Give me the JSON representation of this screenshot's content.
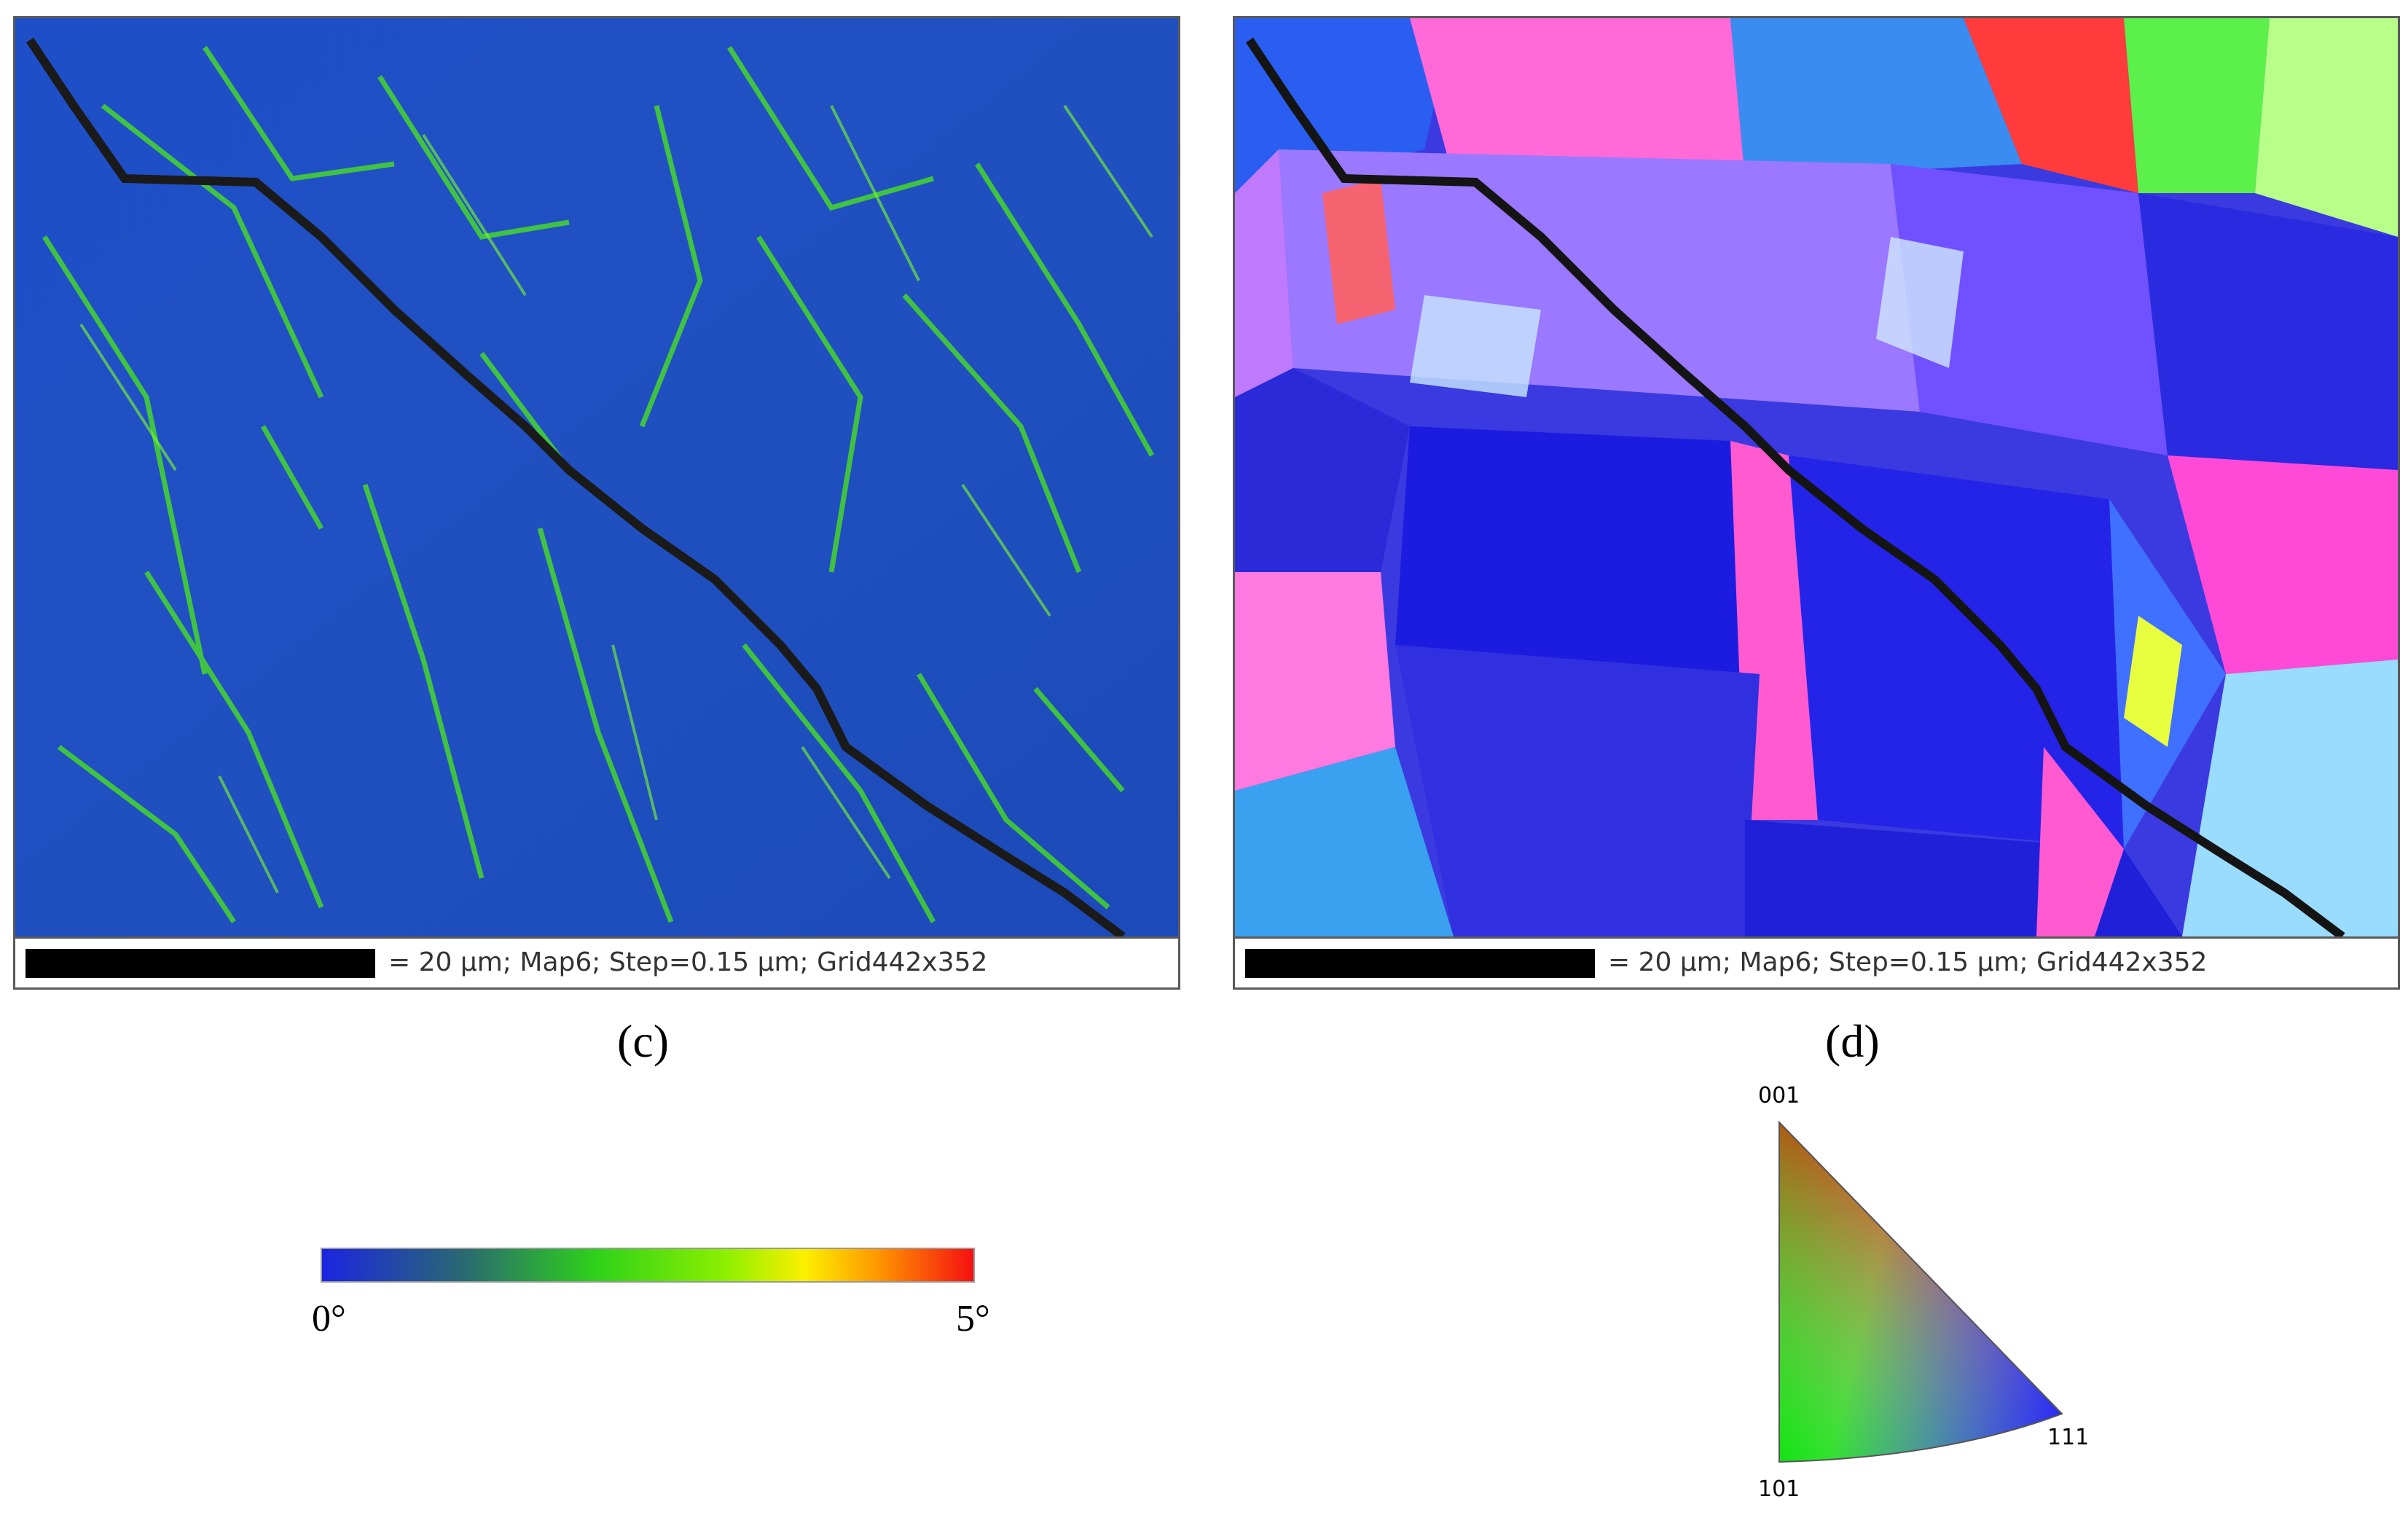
{
  "panels": {
    "c": {
      "label": "(c)",
      "scalebar_text": "= 20 µm; Map6; Step=0.15 µm; Grid442x352"
    },
    "d": {
      "label": "(d)",
      "scalebar_text": "= 20 µm; Map6; Step=0.15 µm; Grid442x352"
    }
  },
  "colorbar": {
    "min_label": "0°",
    "max_label": "5°",
    "colors": [
      "#1a25e0",
      "#2ed11a",
      "#fbf000",
      "#f51010"
    ]
  },
  "ipf_key": {
    "top": "001",
    "bottom": "101",
    "right": "111"
  }
}
